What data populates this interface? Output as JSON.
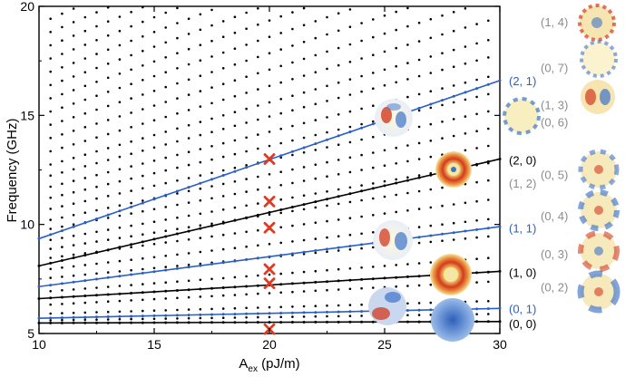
{
  "chart_data": {
    "type": "scatter",
    "xlabel_base": "A",
    "xlabel_sub": "ex",
    "xlabel_rest": " (pJ/m)",
    "ylabel": "Frequency (GHz)",
    "xlim": [
      10,
      30
    ],
    "ylim": [
      5,
      20
    ],
    "xticks": [
      10,
      15,
      20,
      25,
      30
    ],
    "yticks": [
      5,
      10,
      15,
      20
    ],
    "colors": {
      "blue": "#2a5fc4",
      "black": "#000000",
      "gray": "#8c8c8c",
      "red_cross": "#e23a22",
      "mode_red": "#d33a1f",
      "mode_blue": "#3d73c9",
      "mode_yellow": "#f4e7a3"
    },
    "highlighted_branches": [
      {
        "label": "(2, 1)",
        "color": "blue",
        "f_start": 9.35,
        "f_end": 16.6
      },
      {
        "label": "(2, 0)",
        "color": "black",
        "f_start": 8.1,
        "f_end": 13.0
      },
      {
        "label": "(1, 1)",
        "color": "blue",
        "f_start": 7.15,
        "f_end": 9.9
      },
      {
        "label": "(1, 0)",
        "color": "black",
        "f_start": 6.6,
        "f_end": 7.85
      },
      {
        "label": "(0, 1)",
        "color": "blue",
        "f_start": 5.7,
        "f_end": 6.15
      },
      {
        "label": "(0, 0)",
        "color": "black",
        "f_start": 5.48,
        "f_end": 5.55
      }
    ],
    "crosses": {
      "x": 20,
      "y": [
        5.2,
        7.3,
        7.95,
        9.85,
        11.05,
        13.0
      ]
    },
    "right_labels": [
      {
        "text": "(1, 4)",
        "y": 19.3,
        "color": "gray"
      },
      {
        "text": "(0, 7)",
        "y": 17.2,
        "color": "gray"
      },
      {
        "text": "(2, 1)",
        "y": 16.6,
        "color": "blue"
      },
      {
        "text": "(1, 3)",
        "y": 15.5,
        "color": "gray"
      },
      {
        "text": "(0, 6)",
        "y": 14.7,
        "color": "gray"
      },
      {
        "text": "(2, 0)",
        "y": 12.95,
        "color": "black"
      },
      {
        "text": "(0, 5)",
        "y": 12.3,
        "color": "gray"
      },
      {
        "text": "(1, 2)",
        "y": 11.9,
        "color": "gray"
      },
      {
        "text": "(0, 4)",
        "y": 10.4,
        "color": "gray"
      },
      {
        "text": "(1, 1)",
        "y": 9.85,
        "color": "blue"
      },
      {
        "text": "(0, 3)",
        "y": 8.65,
        "color": "gray"
      },
      {
        "text": "(1, 0)",
        "y": 7.8,
        "color": "black"
      },
      {
        "text": "(0, 2)",
        "y": 7.15,
        "color": "gray"
      },
      {
        "text": "(0, 1)",
        "y": 6.15,
        "color": "blue"
      },
      {
        "text": "(0, 0)",
        "y": 5.45,
        "color": "black"
      }
    ],
    "background_branches_f_start": [
      5.6,
      5.9,
      6.3,
      6.9,
      7.5,
      7.9,
      8.4,
      8.8,
      9.2,
      9.7,
      10.1,
      10.6,
      11.1,
      11.6,
      12.1,
      12.6,
      13.2,
      13.8,
      14.4,
      15.0,
      15.6,
      16.2,
      16.8,
      17.4,
      18.0,
      18.6,
      19.2,
      19.8
    ],
    "background_branches_f_end": [
      5.9,
      6.5,
      7.4,
      8.5,
      9.5,
      10.3,
      11.2,
      12.1,
      12.9,
      13.7,
      14.5,
      15.3,
      16.1,
      16.9,
      17.8,
      18.6,
      19.5,
      20.4,
      21.3,
      22.2,
      23.1,
      24.0,
      24.9,
      25.8,
      26.7,
      27.6,
      28.5,
      29.4
    ]
  }
}
